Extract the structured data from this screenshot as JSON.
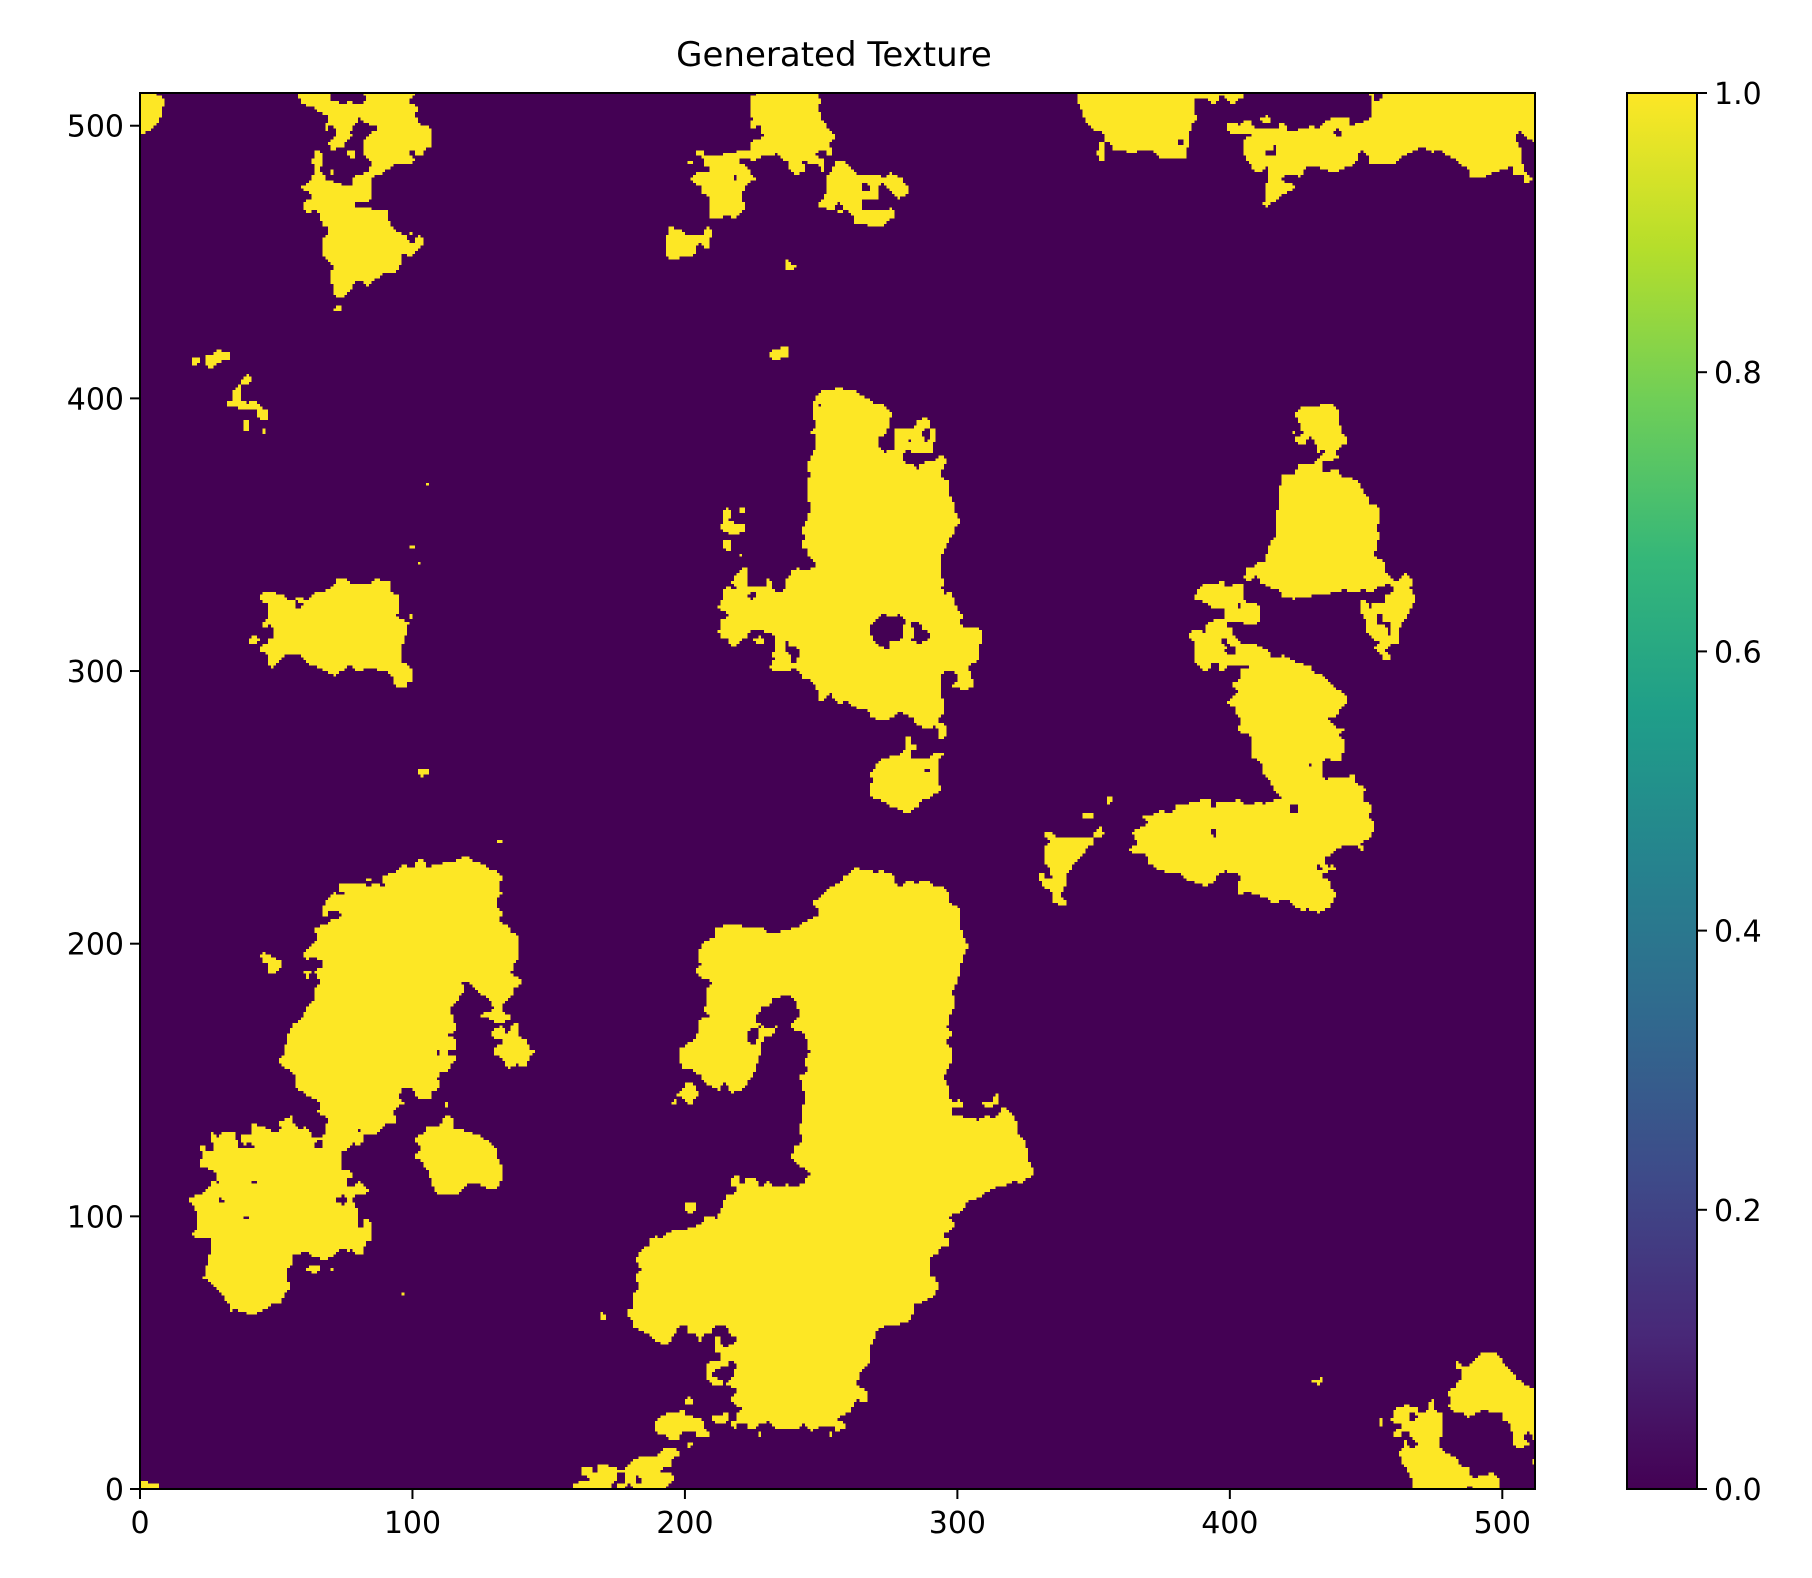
{
  "chart_data": [
    {
      "type": "heatmap",
      "title": "Generated Texture",
      "xlabel": "",
      "ylabel": "",
      "xlim": [
        0,
        512
      ],
      "ylim": [
        0,
        512
      ],
      "origin": "lower",
      "grid": false,
      "colormap": "viridis",
      "value_range": [
        0.0,
        1.0
      ],
      "binary_values": [
        0,
        1
      ],
      "low_color": "#440154",
      "high_color": "#fde725",
      "texture_seed": 1337,
      "xticks": [
        "0",
        "100",
        "200",
        "300",
        "400",
        "500"
      ],
      "yticks": [
        "0",
        "100",
        "200",
        "300",
        "400",
        "500"
      ],
      "xtick_values": [
        0,
        100,
        200,
        300,
        400,
        500
      ],
      "ytick_values": [
        0,
        100,
        200,
        300,
        400,
        500
      ]
    },
    {
      "type": "colorbar",
      "ticks": [
        "0.0",
        "0.2",
        "0.4",
        "0.6",
        "0.8",
        "1.0"
      ],
      "tick_values": [
        0.0,
        0.2,
        0.4,
        0.6,
        0.8,
        1.0
      ],
      "colormap_stops": [
        "#440154",
        "#482878",
        "#3e4a89",
        "#31688e",
        "#26828e",
        "#1f9e89",
        "#35b779",
        "#6ece58",
        "#b5de2b",
        "#fde725"
      ]
    }
  ]
}
